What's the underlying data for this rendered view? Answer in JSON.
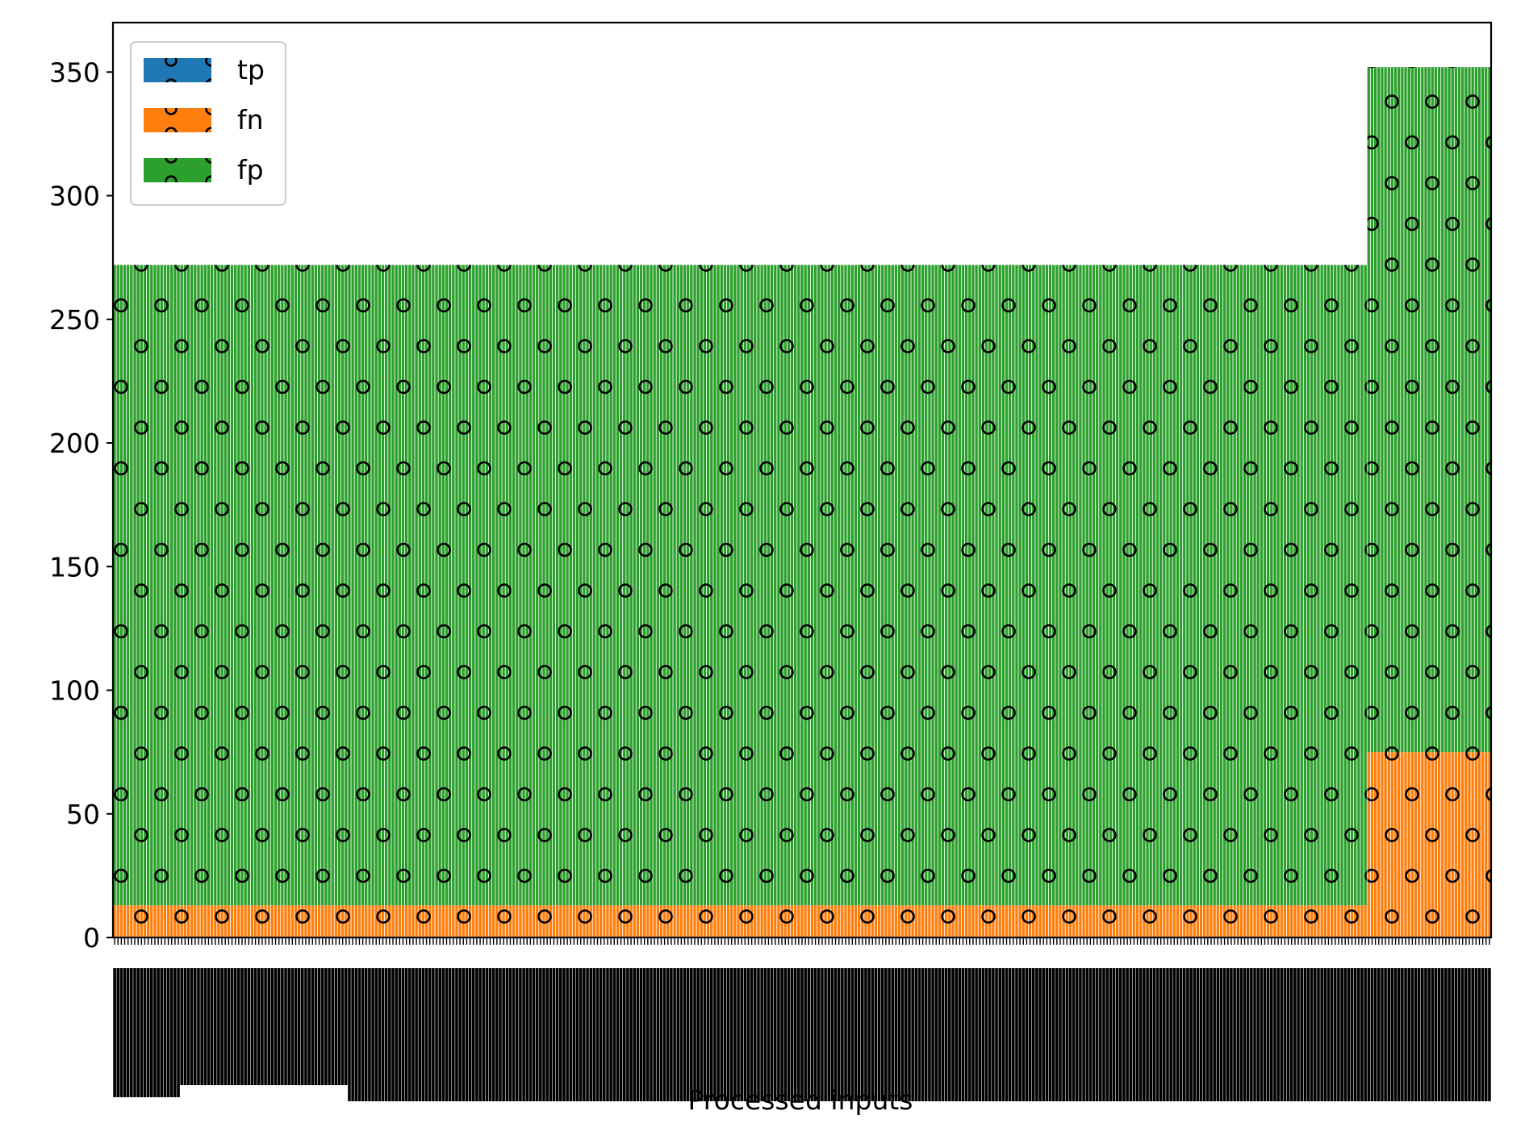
{
  "chart_data": {
    "type": "bar",
    "stacked": true,
    "xlabel": "Processed inputs",
    "ylabel": "",
    "ylim": [
      0,
      370
    ],
    "yticks": [
      0,
      50,
      100,
      150,
      200,
      250,
      300,
      350
    ],
    "bar_count": 411,
    "hatch": "o",
    "legend": {
      "placement": "top-left",
      "entries": [
        "tp",
        "fn",
        "fp"
      ]
    },
    "grid": false,
    "series": [
      {
        "name": "tp",
        "color": "#1f77b4",
        "segments": [
          {
            "from_index": 0,
            "to_index": 410,
            "value": 0
          }
        ]
      },
      {
        "name": "fn",
        "color": "#ff7f0e",
        "segments": [
          {
            "from_index": 0,
            "to_index": 373,
            "value": 13
          },
          {
            "from_index": 374,
            "to_index": 410,
            "value": 75
          }
        ]
      },
      {
        "name": "fp",
        "color": "#2ca02c",
        "segments": [
          {
            "from_index": 0,
            "to_index": 373,
            "value": 259
          },
          {
            "from_index": 374,
            "to_index": 410,
            "value": 277
          }
        ]
      }
    ]
  }
}
